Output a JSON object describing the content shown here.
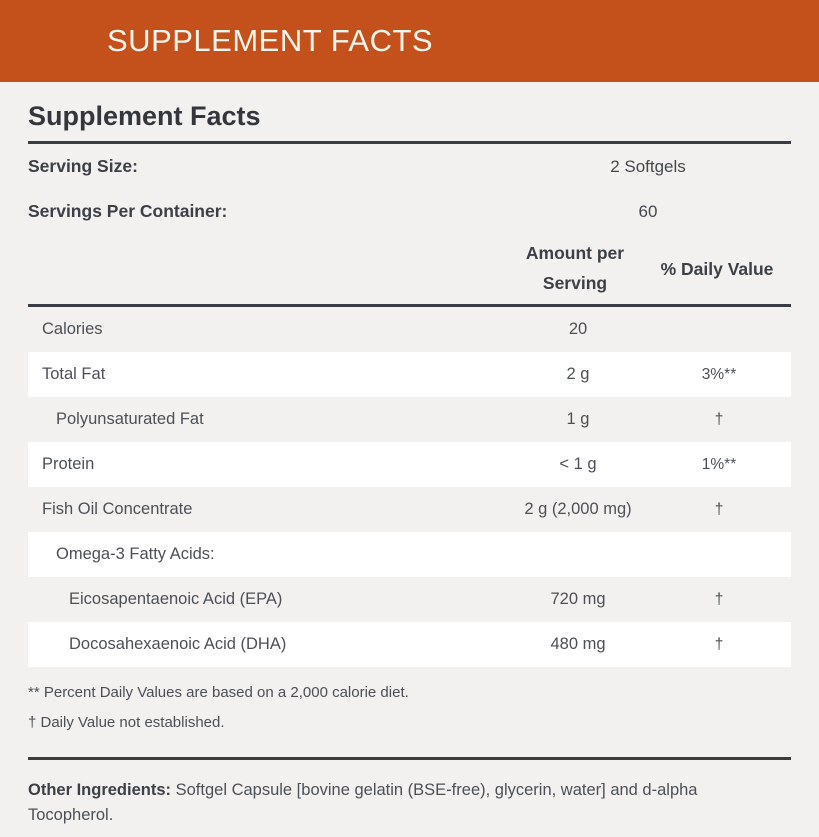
{
  "banner": {
    "title": "SUPPLEMENT FACTS",
    "bg_color": "#C4511C",
    "text_color": "#FBF4EA"
  },
  "panel": {
    "heading": "Supplement Facts",
    "bg_color": "#F2F1EF",
    "rule_color": "#3A3E44",
    "serving_info": [
      {
        "label": "Serving Size:",
        "value": "2 Softgels"
      },
      {
        "label": "Servings Per Container:",
        "value": "60"
      }
    ],
    "columns": {
      "amount": "Amount per Serving",
      "daily_value": "% Daily Value"
    },
    "rows": [
      {
        "name": "Calories",
        "amount": "20",
        "dv": "",
        "indent": 0
      },
      {
        "name": "Total Fat",
        "amount": "2 g",
        "dv": "3%**",
        "indent": 0
      },
      {
        "name": "Polyunsaturated Fat",
        "amount": "1 g",
        "dv": "†",
        "indent": 1
      },
      {
        "name": "Protein",
        "amount": "< 1 g",
        "dv": "1%**",
        "indent": 0
      },
      {
        "name": "Fish Oil Concentrate",
        "amount": "2 g (2,000 mg)",
        "dv": "†",
        "indent": 0
      },
      {
        "name": "Omega-3 Fatty Acids:",
        "amount": "",
        "dv": "",
        "indent": 1
      },
      {
        "name": "Eicosapentaenoic Acid (EPA)",
        "amount": "720 mg",
        "dv": "†",
        "indent": 2
      },
      {
        "name": "Docosahexaenoic Acid (DHA)",
        "amount": "480 mg",
        "dv": "†",
        "indent": 2
      }
    ],
    "footnotes": [
      "** Percent Daily Values are based on a 2,000 calorie diet.",
      "† Daily Value not established."
    ],
    "other_ingredients": {
      "label": "Other Ingredients:",
      "text": "Softgel Capsule [bovine gelatin (BSE-free), glycerin, water] and d-alpha Tocopherol."
    }
  }
}
